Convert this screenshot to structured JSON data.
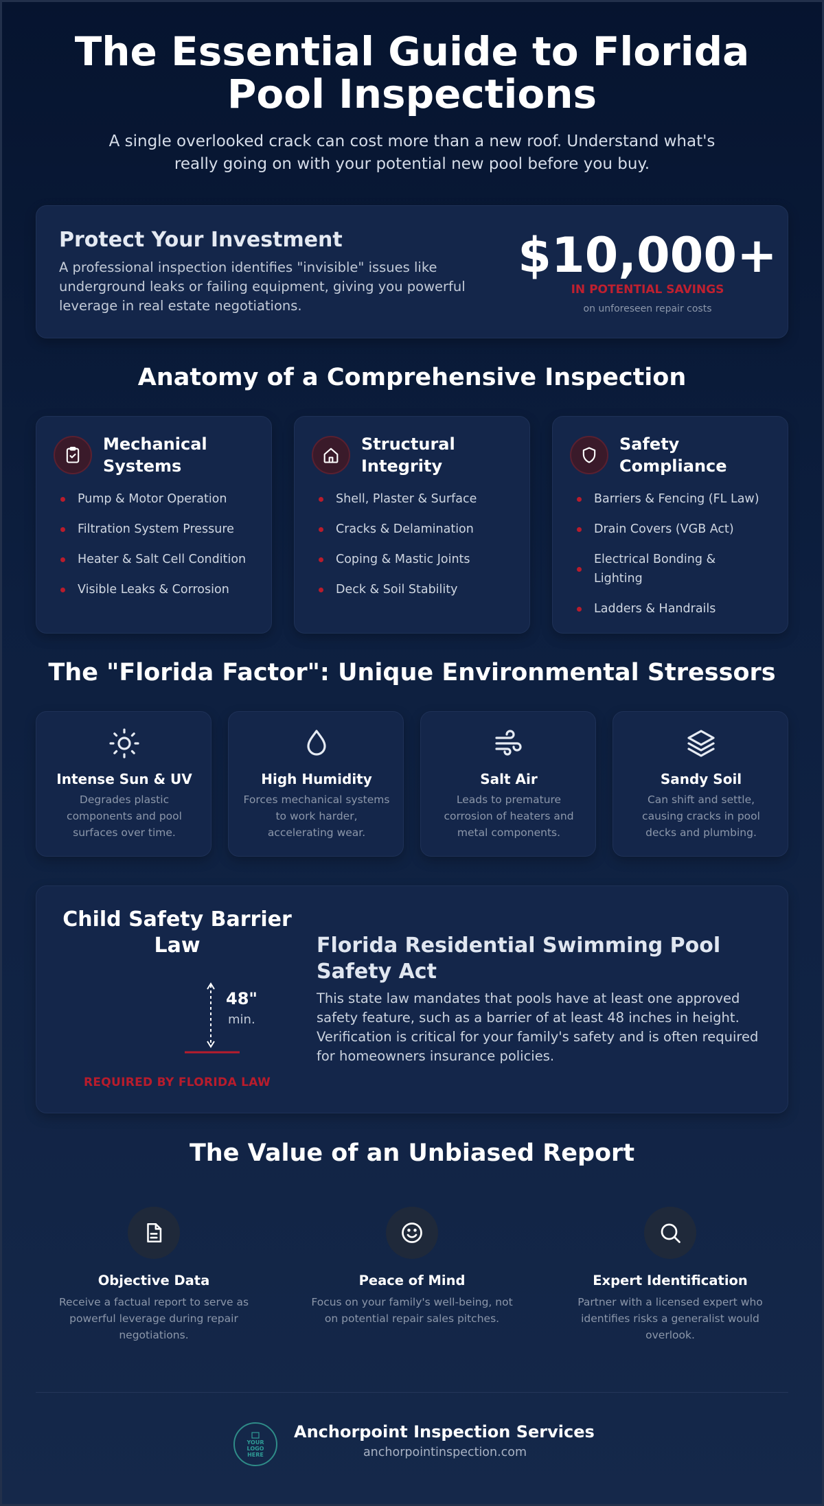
{
  "hero": {
    "title_line1": "The Essential Guide to Florida",
    "title_line2": "Pool Inspections",
    "subtitle": "A single overlooked crack can cost more than a new roof. Understand what's really going on with your potential new pool before you buy."
  },
  "investment": {
    "title": "Protect Your Investment",
    "body": "A professional inspection identifies \"invisible\" issues like underground leaks or failing equipment, giving you powerful leverage in real estate negotiations.",
    "amount": "$10,000+",
    "savings_label": "IN POTENTIAL SAVINGS",
    "note": "on unforeseen repair costs"
  },
  "anatomy": {
    "title": "Anatomy of a Comprehensive Inspection",
    "cards": [
      {
        "icon": "clipboard-check-icon",
        "title": "Mechanical Systems",
        "items": [
          "Pump & Motor Operation",
          "Filtration System Pressure",
          "Heater & Salt Cell Condition",
          "Visible Leaks & Corrosion"
        ]
      },
      {
        "icon": "house-icon",
        "title": "Structural Integrity",
        "items": [
          "Shell, Plaster & Surface",
          "Cracks & Delamination",
          "Coping & Mastic Joints",
          "Deck & Soil Stability"
        ]
      },
      {
        "icon": "shield-icon",
        "title": "Safety Compliance",
        "items": [
          "Barriers & Fencing (FL Law)",
          "Drain Covers (VGB Act)",
          "Electrical Bonding & Lighting",
          "Ladders & Handrails"
        ]
      }
    ]
  },
  "florida_factor": {
    "title": "The \"Florida Factor\": Unique Environmental Stressors",
    "cards": [
      {
        "icon": "sun-icon",
        "title": "Intense Sun & UV",
        "body": "Degrades plastic components and pool surfaces over time."
      },
      {
        "icon": "droplet-icon",
        "title": "High Humidity",
        "body": "Forces mechanical systems to work harder, accelerating wear."
      },
      {
        "icon": "wind-icon",
        "title": "Salt Air",
        "body": "Leads to premature corrosion of heaters and metal components."
      },
      {
        "icon": "layers-icon",
        "title": "Sandy Soil",
        "body": "Can shift and settle, causing cracks in pool decks and plumbing."
      }
    ]
  },
  "safety_law": {
    "left_title": "Child Safety Barrier Law",
    "height_value": "48\"",
    "height_unit": "min.",
    "required": "REQUIRED BY FLORIDA LAW",
    "act_title": "Florida Residential Swimming Pool Safety Act",
    "body": "This state law mandates that pools have at least one approved safety feature, such as a barrier of at least 48 inches in height. Verification is critical for your family's safety and is often required for homeowners insurance policies."
  },
  "value": {
    "title": "The Value of an Unbiased Report",
    "items": [
      {
        "icon": "document-icon",
        "title": "Objective Data",
        "body": "Receive a factual report to serve as powerful leverage during repair negotiations."
      },
      {
        "icon": "smile-icon",
        "title": "Peace of Mind",
        "body": "Focus on your family's well-being, not on potential repair sales pitches."
      },
      {
        "icon": "search-icon",
        "title": "Expert Identification",
        "body": "Partner with a licensed expert who identifies risks a generalist would overlook."
      }
    ]
  },
  "footer": {
    "logo_text": "YOUR LOGO HERE",
    "company": "Anchorpoint Inspection Services",
    "url": "anchorpointinspection.com"
  },
  "colors": {
    "accent_red": "#b81c2c",
    "background": "#0d1f3f",
    "card": "#14264a",
    "logo_teal": "#2f9c96"
  }
}
